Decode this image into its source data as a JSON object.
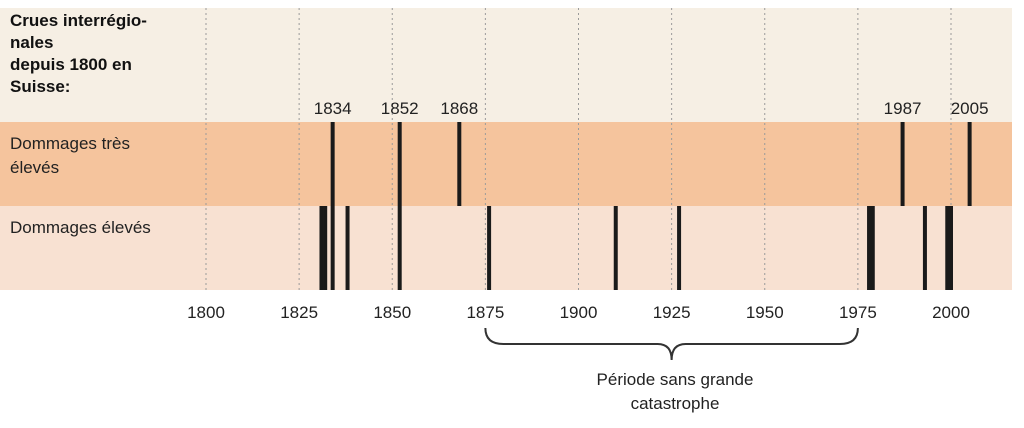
{
  "chart_data": {
    "type": "timeline",
    "title_lines": [
      "Crues interrégio-",
      "nales",
      "depuis 1800 en",
      "Suisse:"
    ],
    "rows": [
      {
        "label_lines": [
          "Dommages très",
          "élevés"
        ],
        "color": "#f5c49d",
        "events": [
          1834,
          1852,
          1868,
          1987,
          2005
        ]
      },
      {
        "label_lines": [
          "Dommages élevés"
        ],
        "color": "#f8e1d2",
        "events": [
          1831,
          1832,
          1834,
          1838,
          1852,
          1876,
          1910,
          1927,
          1978,
          1979,
          1993,
          1999,
          2000
        ]
      }
    ],
    "event_labels": [
      "1834",
      "1852",
      "1868",
      "1987",
      "2005"
    ],
    "x_ticks": [
      "1800",
      "1825",
      "1850",
      "1875",
      "1900",
      "1925",
      "1950",
      "1975",
      "2000"
    ],
    "xlim": [
      1800,
      2015
    ],
    "annotation": {
      "lines": [
        "Période sans grande",
        "catastrophe"
      ],
      "from": 1875,
      "to": 1975
    },
    "grid": "vertical-dotted",
    "colors": {
      "top_band": "#f6efe4",
      "bars": "#1a1a1a",
      "grid": "#9a9a9a",
      "brace": "#333333"
    }
  }
}
